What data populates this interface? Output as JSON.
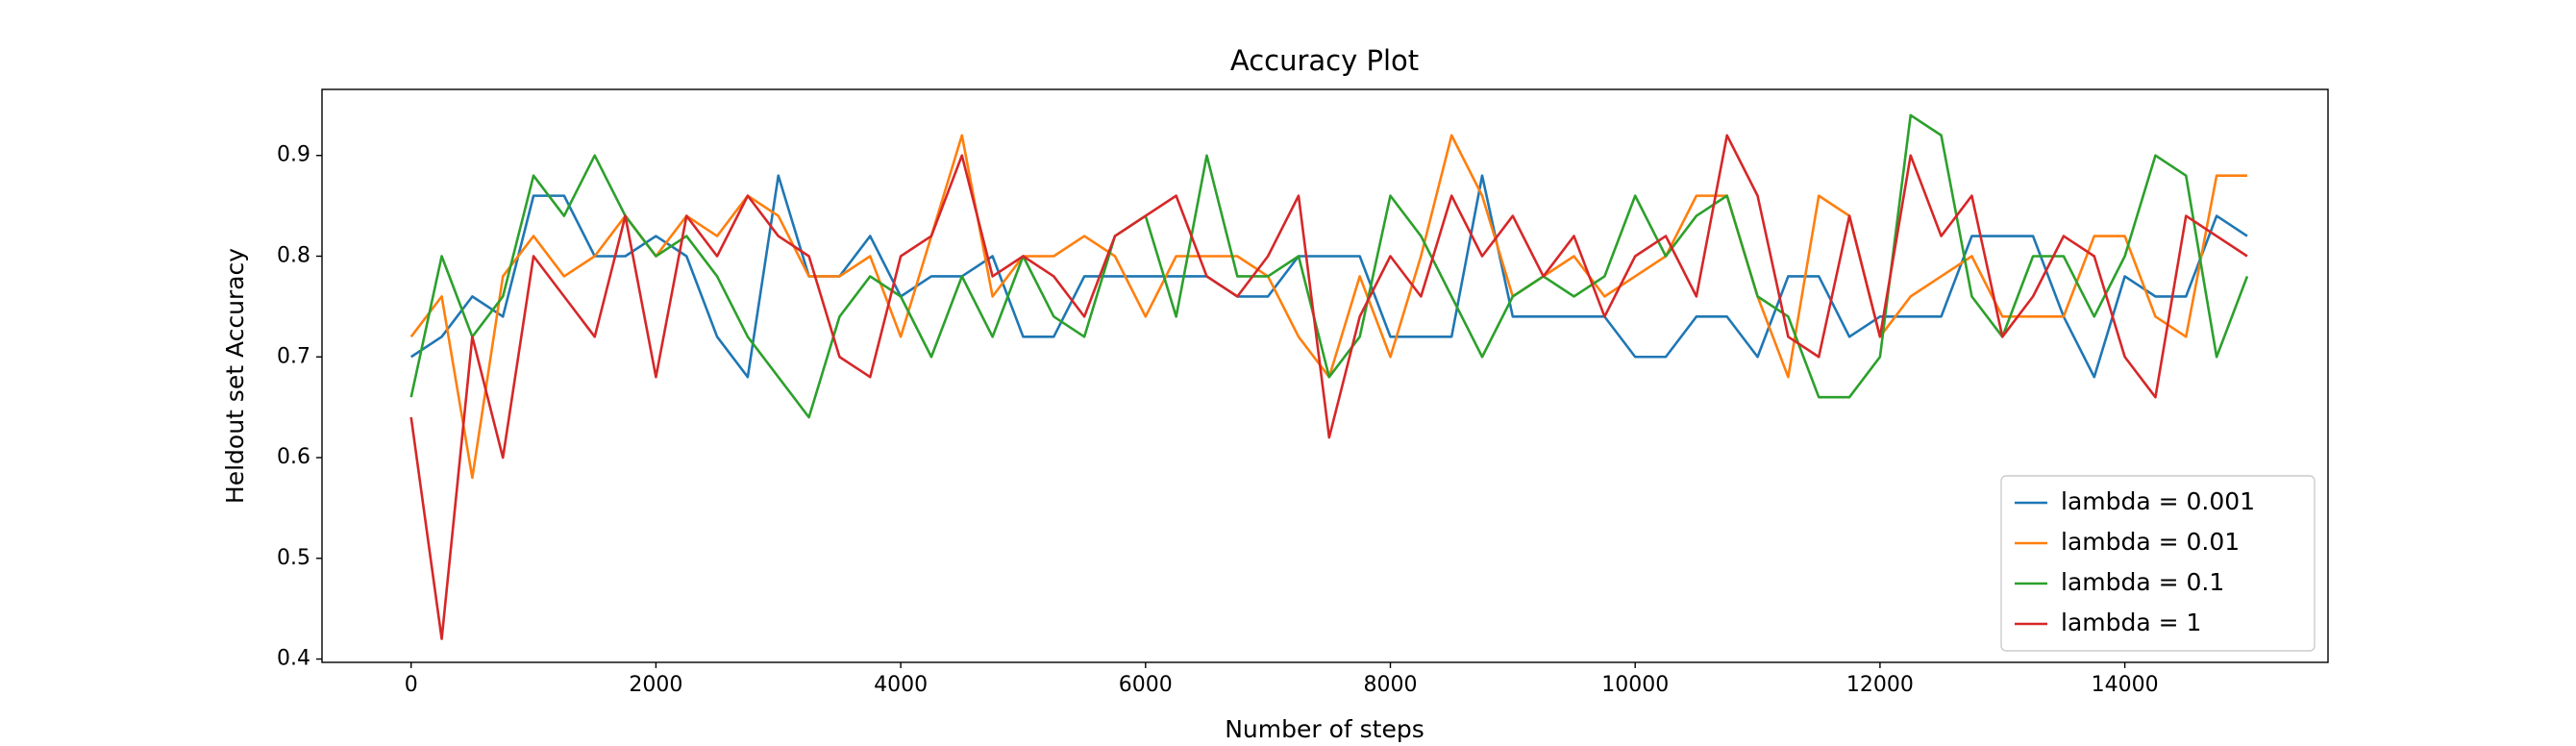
{
  "chart_data": {
    "type": "line",
    "title": "Accuracy Plot",
    "x_label": "Number of steps",
    "y_label": "Heldout set Accuracy",
    "x": [
      0,
      250,
      500,
      750,
      1000,
      1250,
      1500,
      1750,
      2000,
      2250,
      2500,
      2750,
      3000,
      3250,
      3500,
      3750,
      4000,
      4250,
      4500,
      4750,
      5000,
      5250,
      5500,
      5750,
      6000,
      6250,
      6500,
      6750,
      7000,
      7250,
      7500,
      7750,
      8000,
      8250,
      8500,
      8750,
      9000,
      9250,
      9500,
      9750,
      10000,
      10250,
      10500,
      10750,
      11000,
      11250,
      11500,
      11750,
      12000,
      12250,
      12500,
      12750,
      13000,
      13250,
      13500,
      13750,
      14000,
      14250,
      14500,
      14750,
      15000
    ],
    "series": [
      {
        "name": "lambda = 0.001",
        "color": "#1f77b4",
        "values": [
          0.7,
          0.72,
          0.76,
          0.74,
          0.86,
          0.86,
          0.8,
          0.8,
          0.82,
          0.8,
          0.72,
          0.68,
          0.88,
          0.78,
          0.78,
          0.82,
          0.76,
          0.78,
          0.78,
          0.8,
          0.72,
          0.72,
          0.78,
          0.78,
          0.78,
          0.78,
          0.78,
          0.76,
          0.76,
          0.8,
          0.8,
          0.8,
          0.72,
          0.72,
          0.72,
          0.88,
          0.74,
          0.74,
          0.74,
          0.74,
          0.7,
          0.7,
          0.74,
          0.74,
          0.7,
          0.78,
          0.78,
          0.72,
          0.74,
          0.74,
          0.74,
          0.82,
          0.82,
          0.82,
          0.74,
          0.68,
          0.78,
          0.76,
          0.76,
          0.84,
          0.82
        ]
      },
      {
        "name": "lambda = 0.01",
        "color": "#ff7f0e",
        "values": [
          0.72,
          0.76,
          0.58,
          0.78,
          0.82,
          0.78,
          0.8,
          0.84,
          0.8,
          0.84,
          0.82,
          0.86,
          0.84,
          0.78,
          0.78,
          0.8,
          0.72,
          0.82,
          0.92,
          0.76,
          0.8,
          0.8,
          0.82,
          0.8,
          0.74,
          0.8,
          0.8,
          0.8,
          0.78,
          0.72,
          0.68,
          0.78,
          0.7,
          0.8,
          0.92,
          0.86,
          0.76,
          0.78,
          0.8,
          0.76,
          0.78,
          0.8,
          0.86,
          0.86,
          0.76,
          0.68,
          0.86,
          0.84,
          0.72,
          0.76,
          0.78,
          0.8,
          0.74,
          0.74,
          0.74,
          0.82,
          0.82,
          0.74,
          0.72,
          0.88,
          0.88
        ]
      },
      {
        "name": "lambda = 0.1",
        "color": "#2ca02c",
        "values": [
          0.66,
          0.8,
          0.72,
          0.76,
          0.88,
          0.84,
          0.9,
          0.84,
          0.8,
          0.82,
          0.78,
          0.72,
          0.68,
          0.64,
          0.74,
          0.78,
          0.76,
          0.7,
          0.78,
          0.72,
          0.8,
          0.74,
          0.72,
          0.82,
          0.84,
          0.74,
          0.9,
          0.78,
          0.78,
          0.8,
          0.68,
          0.72,
          0.86,
          0.82,
          0.76,
          0.7,
          0.76,
          0.78,
          0.76,
          0.78,
          0.86,
          0.8,
          0.84,
          0.86,
          0.76,
          0.74,
          0.66,
          0.66,
          0.7,
          0.94,
          0.92,
          0.76,
          0.72,
          0.8,
          0.8,
          0.74,
          0.8,
          0.9,
          0.88,
          0.7,
          0.78
        ]
      },
      {
        "name": "lambda = 1",
        "color": "#d62728",
        "values": [
          0.64,
          0.42,
          0.72,
          0.6,
          0.8,
          0.76,
          0.72,
          0.84,
          0.68,
          0.84,
          0.8,
          0.86,
          0.82,
          0.8,
          0.7,
          0.68,
          0.8,
          0.82,
          0.9,
          0.78,
          0.8,
          0.78,
          0.74,
          0.82,
          0.84,
          0.86,
          0.78,
          0.76,
          0.8,
          0.86,
          0.62,
          0.74,
          0.8,
          0.76,
          0.86,
          0.8,
          0.84,
          0.78,
          0.82,
          0.74,
          0.8,
          0.82,
          0.76,
          0.92,
          0.86,
          0.72,
          0.7,
          0.84,
          0.72,
          0.9,
          0.82,
          0.86,
          0.72,
          0.76,
          0.82,
          0.8,
          0.7,
          0.66,
          0.84,
          0.82,
          0.8
        ]
      }
    ],
    "xlim": [
      -728,
      15660
    ],
    "ylim": [
      0.3967,
      0.9656
    ],
    "xticks": [
      0,
      2000,
      4000,
      6000,
      8000,
      10000,
      12000,
      14000
    ],
    "yticks": [
      0.4,
      0.5,
      0.6,
      0.7,
      0.8,
      0.9
    ],
    "grid": false,
    "legend": "lower right"
  }
}
